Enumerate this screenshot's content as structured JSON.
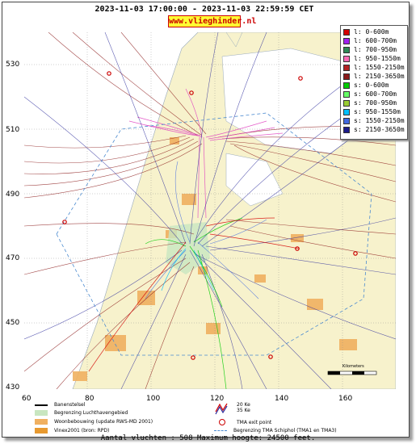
{
  "header": {
    "title": "2023-11-03 17:00:00 - 2023-11-03 22:59:59 CET",
    "site": "www.vlieghinder.nl"
  },
  "axes": {
    "y_ticks": [
      "530",
      "510",
      "490",
      "470",
      "450",
      "430"
    ],
    "x_ticks": [
      "60",
      "80",
      "100",
      "120",
      "140",
      "160"
    ]
  },
  "legend": [
    {
      "label": "l: 0-600m",
      "color": "#d40000"
    },
    {
      "label": "l: 600-700m",
      "color": "#a020f0"
    },
    {
      "label": "l: 700-950m",
      "color": "#2e8b57"
    },
    {
      "label": "l: 950-1550m",
      "color": "#ff69b4"
    },
    {
      "label": "l: 1550-2150m",
      "color": "#b22222"
    },
    {
      "label": "l: 2150-3650m",
      "color": "#8b1a1a"
    },
    {
      "label": "s: 0-600m",
      "color": "#00cc00"
    },
    {
      "label": "s: 600-700m",
      "color": "#66ff66"
    },
    {
      "label": "s: 700-950m",
      "color": "#9acd32"
    },
    {
      "label": "s: 950-1550m",
      "color": "#00bfff"
    },
    {
      "label": "s: 1550-2150m",
      "color": "#4169e1"
    },
    {
      "label": "s: 2150-3650m",
      "color": "#1c1c8b"
    }
  ],
  "bottom_legend": {
    "runway": "Banenstelsel",
    "airport_boundary": "Begrenzing Luchthavengebied",
    "housing": "Woonbebouwing (update RWS-MD 2001)",
    "vinex": "Vinex2001 (bron: RPD)",
    "noise_20": "20 Ke",
    "noise_35": "35 Ke",
    "tma_exit": "TMA exit point",
    "tma_boundary": "Begrenzing TMA Schiphol  (TMA1 en TMA3)"
  },
  "footer": "Aantal vluchten : 508 Maximum hoogte: 24500 feet.",
  "scale_label": "Kilometers"
}
